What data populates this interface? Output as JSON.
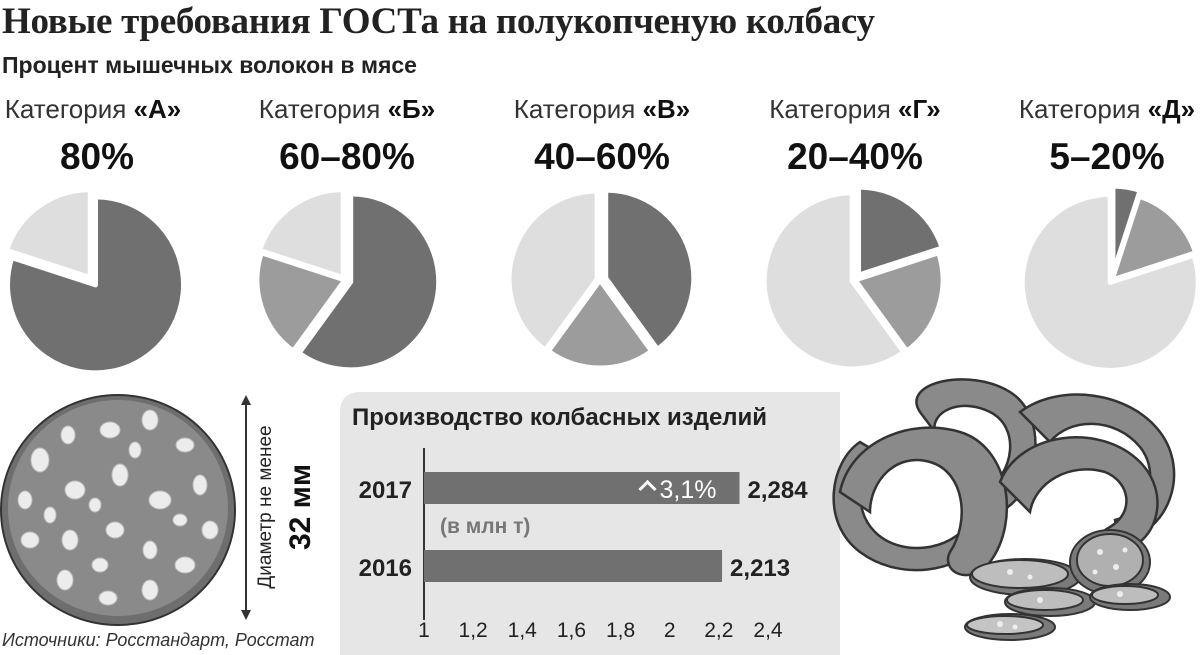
{
  "title": "Новые требования ГОСТа на полукопченую колбасу",
  "subtitle": "Процент мышечных волокон в мясе",
  "categories": [
    {
      "label": "Категория ",
      "letter": "«А»",
      "range": "80%"
    },
    {
      "label": "Категория ",
      "letter": "«Б»",
      "range": "60–80%"
    },
    {
      "label": "Категория ",
      "letter": "«В»",
      "range": "40–60%"
    },
    {
      "label": "Категория ",
      "letter": "«Г»",
      "range": "20–40%"
    },
    {
      "label": "Категория ",
      "letter": "«Д»",
      "range": "5–20%"
    }
  ],
  "diameter": {
    "label": "Диаметр не менее",
    "value": "32 мм"
  },
  "source": "Источники: Росстандарт, Росстат",
  "colors": {
    "dark": "#707070",
    "medium": "#9c9c9c",
    "light": "#dedede",
    "panel": "#e6e6e6"
  },
  "chart_data": [
    {
      "type": "pie",
      "title": "Процент мышечных волокон в мясе",
      "pies": [
        {
          "category": "«А»",
          "slices": [
            {
              "value": 80,
              "shade": "dark"
            },
            {
              "value": 20,
              "shade": "light"
            }
          ]
        },
        {
          "category": "«Б»",
          "slices": [
            {
              "value": 60,
              "shade": "dark"
            },
            {
              "value": 20,
              "shade": "medium"
            },
            {
              "value": 20,
              "shade": "light"
            }
          ]
        },
        {
          "category": "«В»",
          "slices": [
            {
              "value": 40,
              "shade": "dark"
            },
            {
              "value": 20,
              "shade": "medium"
            },
            {
              "value": 40,
              "shade": "light"
            }
          ]
        },
        {
          "category": "«Г»",
          "slices": [
            {
              "value": 20,
              "shade": "dark"
            },
            {
              "value": 20,
              "shade": "medium"
            },
            {
              "value": 60,
              "shade": "light"
            }
          ]
        },
        {
          "category": "«Д»",
          "slices": [
            {
              "value": 5,
              "shade": "dark"
            },
            {
              "value": 15,
              "shade": "medium"
            },
            {
              "value": 80,
              "shade": "light"
            }
          ]
        }
      ]
    },
    {
      "type": "bar",
      "orientation": "horizontal",
      "title": "Производство колбасных изделий",
      "unit_note": "(в млн т)",
      "categories": [
        "2017",
        "2016"
      ],
      "values": [
        2.284,
        2.213
      ],
      "value_labels": [
        "2,284",
        "2,213"
      ],
      "growth_label": "3,1%",
      "xlim": [
        1,
        2.4
      ],
      "xticks": [
        "1",
        "1,2",
        "1,4",
        "1,6",
        "1,8",
        "2",
        "2,2",
        "2,4"
      ]
    }
  ]
}
